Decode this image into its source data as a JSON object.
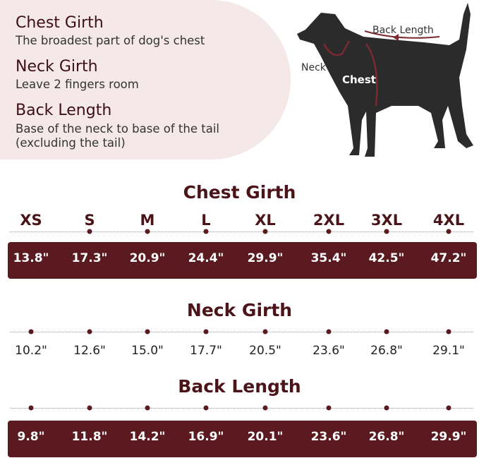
{
  "legend": [
    {
      "title": "Chest Girth",
      "desc": "The broadest part of dog's chest"
    },
    {
      "title": "Neck Girth",
      "desc": "Leave 2 fingers room"
    },
    {
      "title": "Back Length",
      "desc_lines": [
        "Base of the neck to base of the tail",
        "(excluding the tail)"
      ]
    }
  ],
  "diagram": {
    "labels": {
      "back": "Back Length",
      "neck": "Neck",
      "chest": "Chest"
    }
  },
  "colors": {
    "accent": "#5a1a20",
    "panel": "#f4e8e8",
    "silhouette": "#2b2b2b"
  },
  "sizes": [
    "XS",
    "S",
    "M",
    "L",
    "XL",
    "2XL",
    "3XL",
    "4XL"
  ],
  "tables": [
    {
      "title": "Chest Girth",
      "values": [
        "13.8\"",
        "17.3\"",
        "20.9\"",
        "24.4\"",
        "29.9\"",
        "35.4\"",
        "42.5\"",
        "47.2\""
      ],
      "highlight": true
    },
    {
      "title": "Neck Girth",
      "values": [
        "10.2\"",
        "12.6\"",
        "15.0\"",
        "17.7\"",
        "20.5\"",
        "23.6\"",
        "26.8\"",
        "29.1\""
      ],
      "highlight": false
    },
    {
      "title": "Back Length",
      "values": [
        "9.8\"",
        "11.8\"",
        "14.2\"",
        "16.9\"",
        "20.1\"",
        "23.6\"",
        "26.8\"",
        "29.9\""
      ],
      "highlight": true
    }
  ]
}
